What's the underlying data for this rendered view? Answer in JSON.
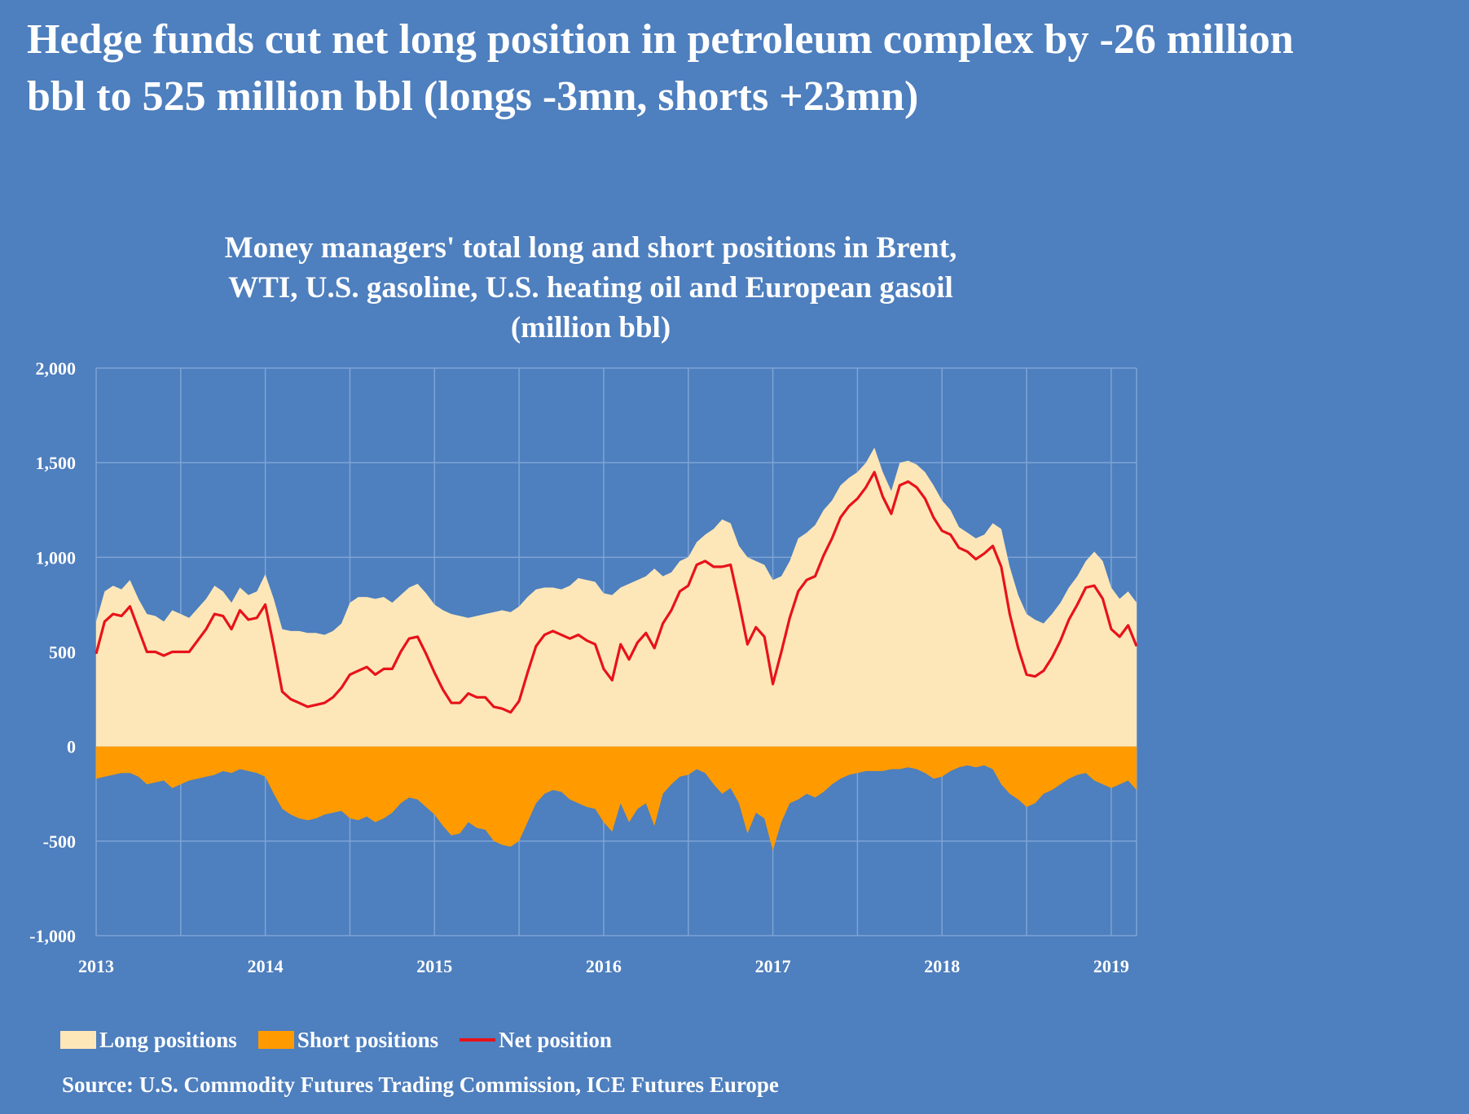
{
  "headline": {
    "line1": "Hedge funds cut net long position in petroleum complex by -26 million",
    "line2": "bbl to 525 million bbl (longs -3mn, shorts +23mn)"
  },
  "chart_data": {
    "type": "area",
    "title_lines": [
      "Money managers' total long and short positions in Brent,",
      "WTI, U.S. gasoline, U.S. heating oil and European gasoil",
      "(million bbl)"
    ],
    "xlabel": "",
    "ylabel": "",
    "ylim": [
      -1000,
      2000
    ],
    "xlim": [
      2013.0,
      2019.15
    ],
    "yticks": [
      2000,
      1500,
      1000,
      500,
      0,
      -500,
      -1000
    ],
    "ytick_labels": [
      "2,000",
      "1,500",
      "1,000",
      "500",
      "0",
      "-500",
      "-1,000"
    ],
    "xticks": [
      2013,
      2014,
      2015,
      2016,
      2017,
      2018,
      2019
    ],
    "xtick_labels": [
      "2013",
      "2014",
      "2015",
      "2016",
      "2017",
      "2018",
      "2019"
    ],
    "grid": true,
    "colors": {
      "background": "#4e7fbe",
      "grid": "#7ea4d6",
      "long": "#fde7b8",
      "short": "#ff9b00",
      "net": "#e8121a"
    },
    "series": [
      {
        "name": "Long positions",
        "kind": "area",
        "x": [
          2013.0,
          2013.05,
          2013.1,
          2013.15,
          2013.2,
          2013.25,
          2013.3,
          2013.35,
          2013.4,
          2013.45,
          2013.5,
          2013.55,
          2013.6,
          2013.65,
          2013.7,
          2013.75,
          2013.8,
          2013.85,
          2013.9,
          2013.95,
          2014.0,
          2014.05,
          2014.1,
          2014.15,
          2014.2,
          2014.25,
          2014.3,
          2014.35,
          2014.4,
          2014.45,
          2014.5,
          2014.55,
          2014.6,
          2014.65,
          2014.7,
          2014.75,
          2014.8,
          2014.85,
          2014.9,
          2014.95,
          2015.0,
          2015.05,
          2015.1,
          2015.15,
          2015.2,
          2015.25,
          2015.3,
          2015.35,
          2015.4,
          2015.45,
          2015.5,
          2015.55,
          2015.6,
          2015.65,
          2015.7,
          2015.75,
          2015.8,
          2015.85,
          2015.9,
          2015.95,
          2016.0,
          2016.05,
          2016.1,
          2016.15,
          2016.2,
          2016.25,
          2016.3,
          2016.35,
          2016.4,
          2016.45,
          2016.5,
          2016.55,
          2016.6,
          2016.65,
          2016.7,
          2016.75,
          2016.8,
          2016.85,
          2016.9,
          2016.95,
          2017.0,
          2017.05,
          2017.1,
          2017.15,
          2017.2,
          2017.25,
          2017.3,
          2017.35,
          2017.4,
          2017.45,
          2017.5,
          2017.55,
          2017.6,
          2017.65,
          2017.7,
          2017.75,
          2017.8,
          2017.85,
          2017.9,
          2017.95,
          2018.0,
          2018.05,
          2018.1,
          2018.15,
          2018.2,
          2018.25,
          2018.3,
          2018.35,
          2018.4,
          2018.45,
          2018.5,
          2018.55,
          2018.6,
          2018.65,
          2018.7,
          2018.75,
          2018.8,
          2018.85,
          2018.9,
          2018.95,
          2019.0,
          2019.05,
          2019.1,
          2019.15
        ],
        "values": [
          660,
          820,
          850,
          830,
          880,
          780,
          700,
          690,
          660,
          720,
          700,
          680,
          730,
          780,
          850,
          820,
          760,
          840,
          800,
          820,
          910,
          780,
          620,
          610,
          610,
          600,
          600,
          590,
          610,
          650,
          760,
          790,
          790,
          780,
          790,
          760,
          800,
          840,
          860,
          810,
          750,
          720,
          700,
          690,
          680,
          690,
          700,
          710,
          720,
          710,
          740,
          790,
          830,
          840,
          840,
          830,
          850,
          890,
          880,
          870,
          810,
          800,
          840,
          860,
          880,
          900,
          940,
          900,
          920,
          980,
          1000,
          1080,
          1120,
          1150,
          1200,
          1180,
          1060,
          1000,
          980,
          960,
          880,
          900,
          980,
          1100,
          1130,
          1170,
          1250,
          1300,
          1380,
          1420,
          1450,
          1500,
          1580,
          1450,
          1350,
          1500,
          1510,
          1490,
          1450,
          1380,
          1300,
          1250,
          1160,
          1130,
          1100,
          1120,
          1180,
          1150,
          950,
          800,
          700,
          670,
          650,
          700,
          760,
          840,
          900,
          980,
          1030,
          980,
          840,
          780,
          820,
          760
        ]
      },
      {
        "name": "Short positions",
        "kind": "area",
        "x": [
          2013.0,
          2013.05,
          2013.1,
          2013.15,
          2013.2,
          2013.25,
          2013.3,
          2013.35,
          2013.4,
          2013.45,
          2013.5,
          2013.55,
          2013.6,
          2013.65,
          2013.7,
          2013.75,
          2013.8,
          2013.85,
          2013.9,
          2013.95,
          2014.0,
          2014.05,
          2014.1,
          2014.15,
          2014.2,
          2014.25,
          2014.3,
          2014.35,
          2014.4,
          2014.45,
          2014.5,
          2014.55,
          2014.6,
          2014.65,
          2014.7,
          2014.75,
          2014.8,
          2014.85,
          2014.9,
          2014.95,
          2015.0,
          2015.05,
          2015.1,
          2015.15,
          2015.2,
          2015.25,
          2015.3,
          2015.35,
          2015.4,
          2015.45,
          2015.5,
          2015.55,
          2015.6,
          2015.65,
          2015.7,
          2015.75,
          2015.8,
          2015.85,
          2015.9,
          2015.95,
          2016.0,
          2016.05,
          2016.1,
          2016.15,
          2016.2,
          2016.25,
          2016.3,
          2016.35,
          2016.4,
          2016.45,
          2016.5,
          2016.55,
          2016.6,
          2016.65,
          2016.7,
          2016.75,
          2016.8,
          2016.85,
          2016.9,
          2016.95,
          2017.0,
          2017.05,
          2017.1,
          2017.15,
          2017.2,
          2017.25,
          2017.3,
          2017.35,
          2017.4,
          2017.45,
          2017.5,
          2017.55,
          2017.6,
          2017.65,
          2017.7,
          2017.75,
          2017.8,
          2017.85,
          2017.9,
          2017.95,
          2018.0,
          2018.05,
          2018.1,
          2018.15,
          2018.2,
          2018.25,
          2018.3,
          2018.35,
          2018.4,
          2018.45,
          2018.5,
          2018.55,
          2018.6,
          2018.65,
          2018.7,
          2018.75,
          2018.8,
          2018.85,
          2018.9,
          2018.95,
          2019.0,
          2019.05,
          2019.1,
          2019.15
        ],
        "values": [
          -170,
          -160,
          -150,
          -140,
          -140,
          -160,
          -200,
          -190,
          -180,
          -220,
          -200,
          -180,
          -170,
          -160,
          -150,
          -130,
          -140,
          -120,
          -130,
          -140,
          -160,
          -250,
          -330,
          -360,
          -380,
          -390,
          -380,
          -360,
          -350,
          -340,
          -380,
          -390,
          -370,
          -400,
          -380,
          -350,
          -300,
          -270,
          -280,
          -320,
          -360,
          -420,
          -470,
          -460,
          -400,
          -430,
          -440,
          -500,
          -520,
          -530,
          -500,
          -400,
          -300,
          -250,
          -230,
          -240,
          -280,
          -300,
          -320,
          -330,
          -400,
          -450,
          -300,
          -400,
          -330,
          -300,
          -420,
          -250,
          -200,
          -160,
          -150,
          -120,
          -140,
          -200,
          -250,
          -220,
          -300,
          -460,
          -350,
          -380,
          -550,
          -400,
          -300,
          -280,
          -250,
          -270,
          -240,
          -200,
          -170,
          -150,
          -140,
          -130,
          -130,
          -130,
          -120,
          -120,
          -110,
          -120,
          -140,
          -170,
          -160,
          -130,
          -110,
          -100,
          -110,
          -100,
          -120,
          -200,
          -250,
          -280,
          -320,
          -300,
          -250,
          -230,
          -200,
          -170,
          -150,
          -140,
          -180,
          -200,
          -220,
          -200,
          -180,
          -230
        ]
      },
      {
        "name": "Net position",
        "kind": "line",
        "x": [
          2013.0,
          2013.05,
          2013.1,
          2013.15,
          2013.2,
          2013.25,
          2013.3,
          2013.35,
          2013.4,
          2013.45,
          2013.5,
          2013.55,
          2013.6,
          2013.65,
          2013.7,
          2013.75,
          2013.8,
          2013.85,
          2013.9,
          2013.95,
          2014.0,
          2014.05,
          2014.1,
          2014.15,
          2014.2,
          2014.25,
          2014.3,
          2014.35,
          2014.4,
          2014.45,
          2014.5,
          2014.55,
          2014.6,
          2014.65,
          2014.7,
          2014.75,
          2014.8,
          2014.85,
          2014.9,
          2014.95,
          2015.0,
          2015.05,
          2015.1,
          2015.15,
          2015.2,
          2015.25,
          2015.3,
          2015.35,
          2015.4,
          2015.45,
          2015.5,
          2015.55,
          2015.6,
          2015.65,
          2015.7,
          2015.75,
          2015.8,
          2015.85,
          2015.9,
          2015.95,
          2016.0,
          2016.05,
          2016.1,
          2016.15,
          2016.2,
          2016.25,
          2016.3,
          2016.35,
          2016.4,
          2016.45,
          2016.5,
          2016.55,
          2016.6,
          2016.65,
          2016.7,
          2016.75,
          2016.8,
          2016.85,
          2016.9,
          2016.95,
          2017.0,
          2017.05,
          2017.1,
          2017.15,
          2017.2,
          2017.25,
          2017.3,
          2017.35,
          2017.4,
          2017.45,
          2017.5,
          2017.55,
          2017.6,
          2017.65,
          2017.7,
          2017.75,
          2017.8,
          2017.85,
          2017.9,
          2017.95,
          2018.0,
          2018.05,
          2018.1,
          2018.15,
          2018.2,
          2018.25,
          2018.3,
          2018.35,
          2018.4,
          2018.45,
          2018.5,
          2018.55,
          2018.6,
          2018.65,
          2018.7,
          2018.75,
          2018.8,
          2018.85,
          2018.9,
          2018.95,
          2019.0,
          2019.05,
          2019.1,
          2019.15
        ],
        "values": [
          490,
          660,
          700,
          690,
          740,
          620,
          500,
          500,
          480,
          500,
          500,
          500,
          560,
          620,
          700,
          690,
          620,
          720,
          670,
          680,
          750,
          530,
          290,
          250,
          230,
          210,
          220,
          230,
          260,
          310,
          380,
          400,
          420,
          380,
          410,
          410,
          500,
          570,
          580,
          490,
          390,
          300,
          230,
          230,
          280,
          260,
          260,
          210,
          200,
          180,
          240,
          390,
          530,
          590,
          610,
          590,
          570,
          590,
          560,
          540,
          410,
          350,
          540,
          460,
          550,
          600,
          520,
          650,
          720,
          820,
          850,
          960,
          980,
          950,
          950,
          960,
          760,
          540,
          630,
          580,
          330,
          500,
          680,
          820,
          880,
          900,
          1010,
          1100,
          1210,
          1270,
          1310,
          1370,
          1450,
          1320,
          1230,
          1380,
          1400,
          1370,
          1310,
          1210,
          1140,
          1120,
          1050,
          1030,
          990,
          1020,
          1060,
          950,
          700,
          520,
          380,
          370,
          400,
          470,
          560,
          670,
          750,
          840,
          850,
          780,
          620,
          580,
          640,
          530
        ]
      }
    ]
  },
  "legend": {
    "long": "Long positions",
    "short": "Short positions",
    "net": "Net position"
  },
  "source": "Source: U.S. Commodity Futures Trading Commission, ICE Futures Europe"
}
